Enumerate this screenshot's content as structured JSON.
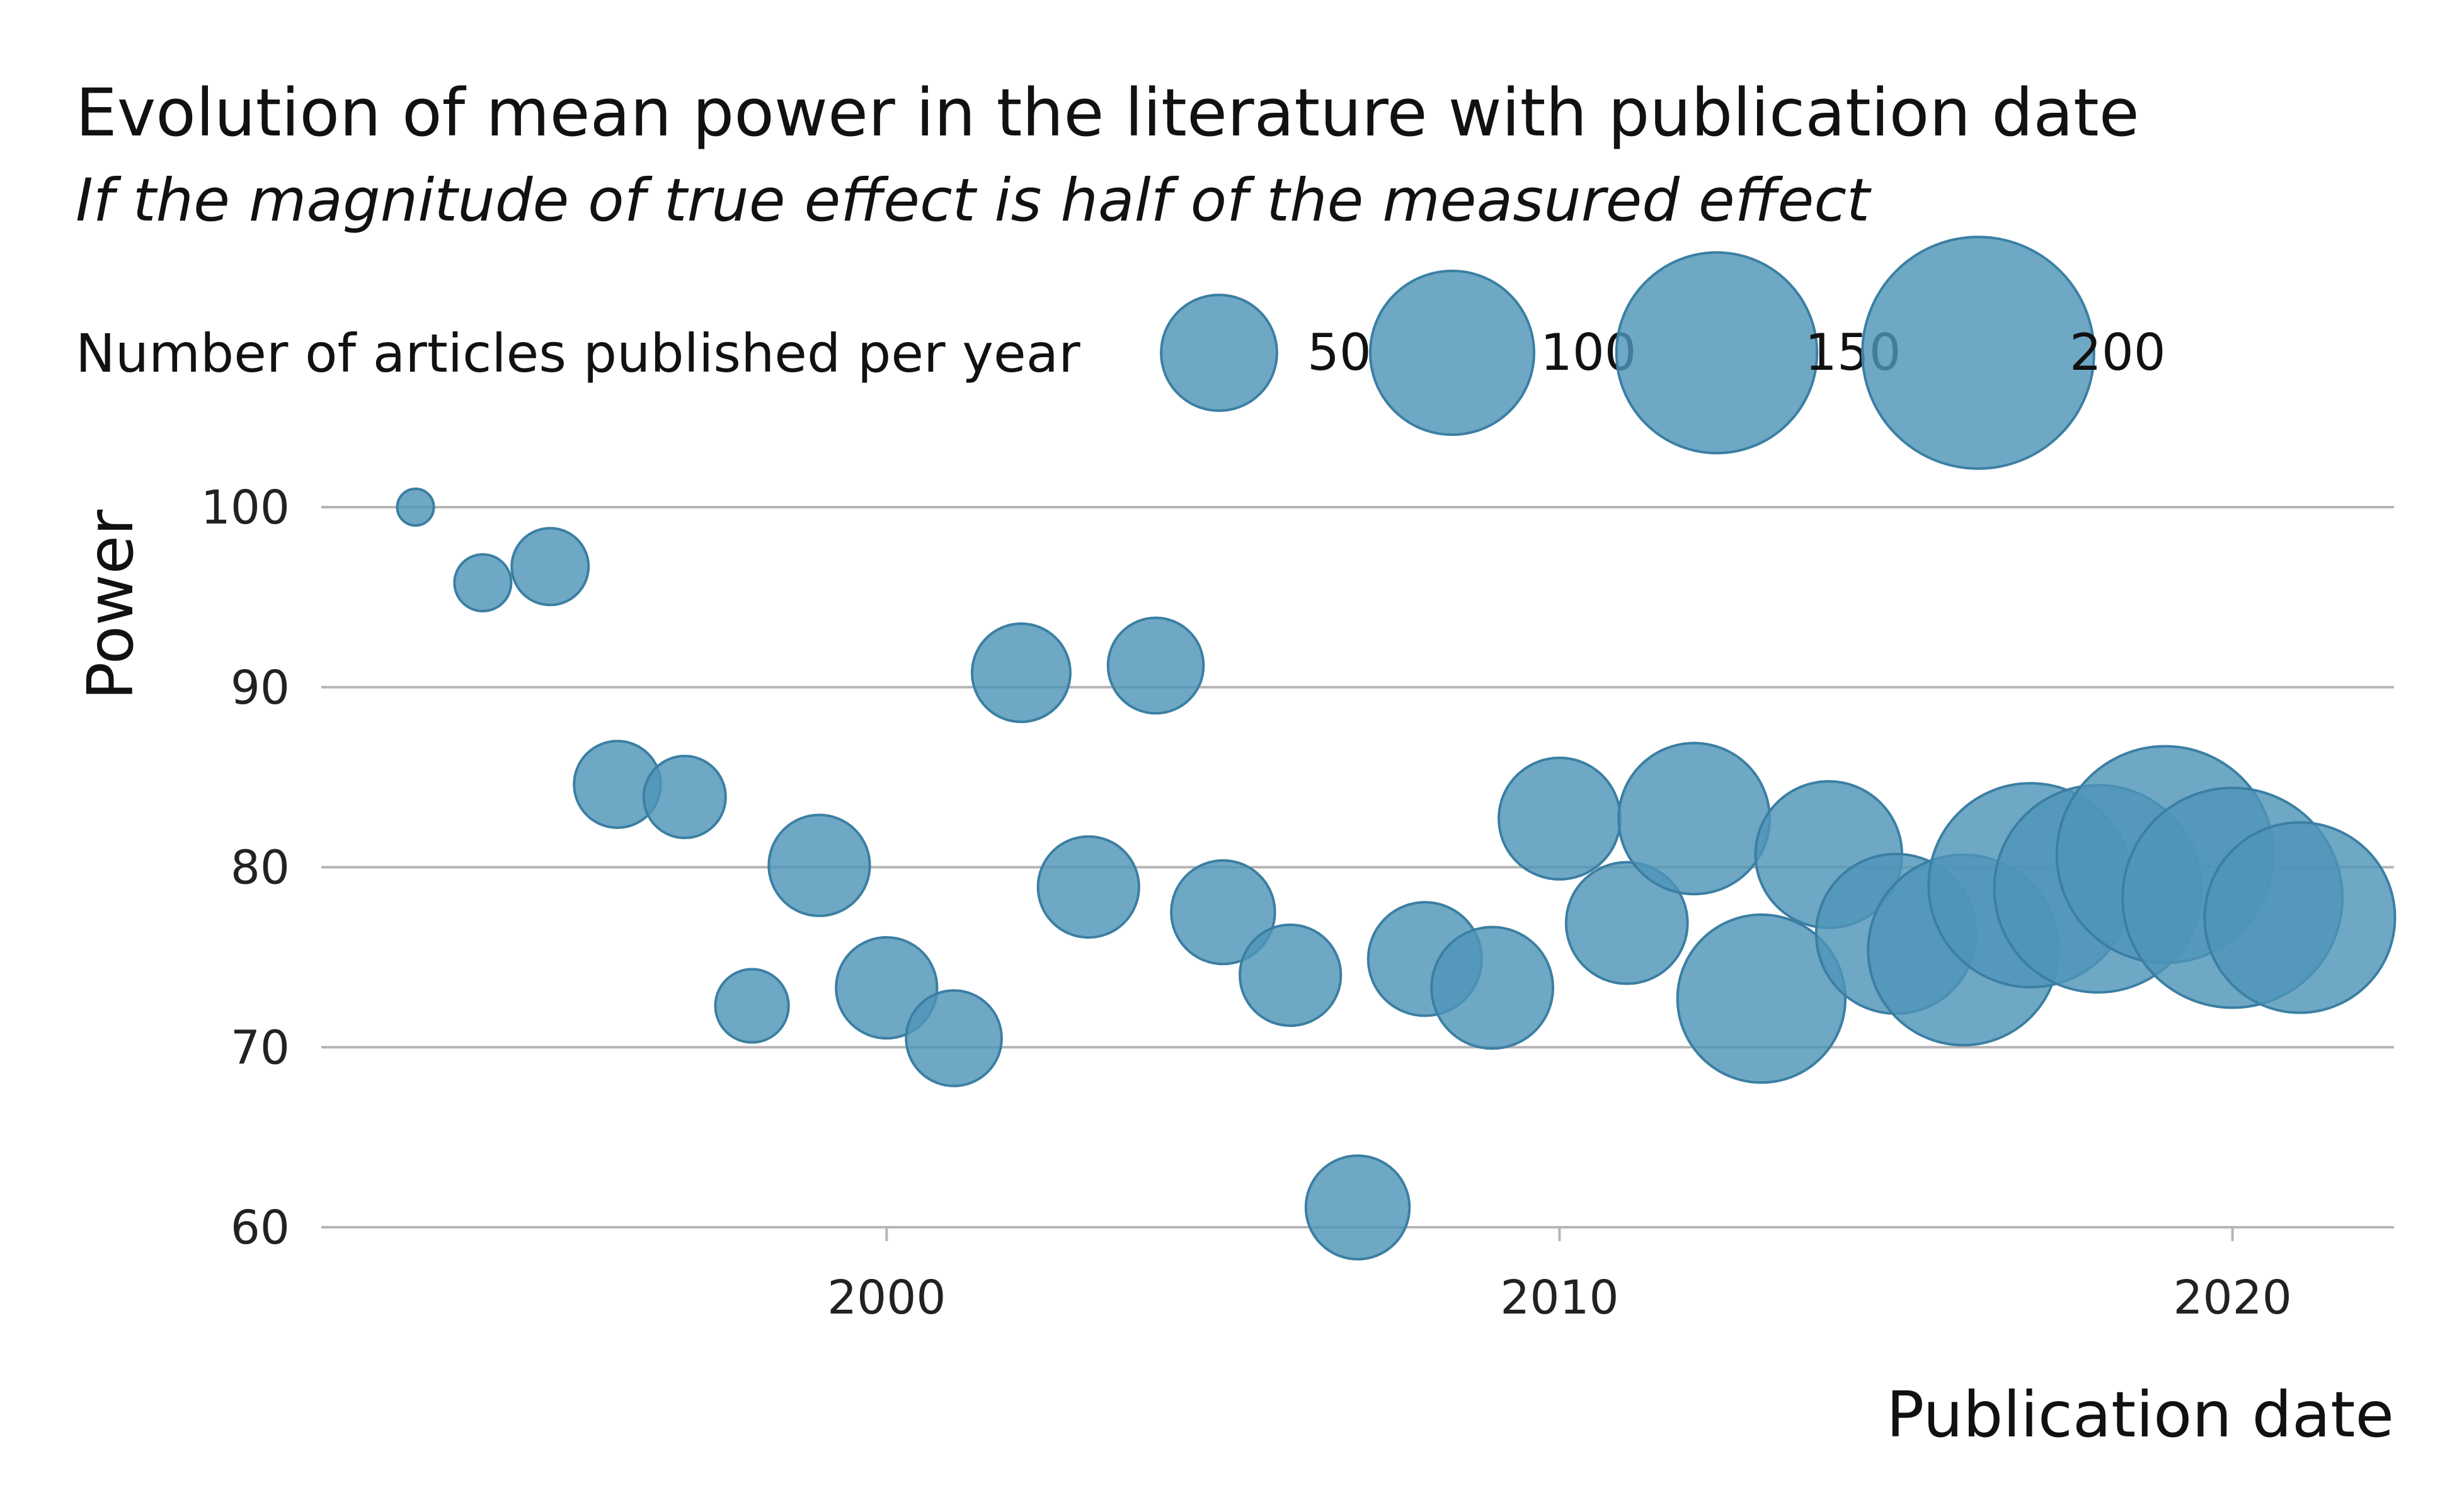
{
  "chart_data": {
    "type": "scatter",
    "title": "Evolution of mean power in the literature with publication date",
    "subtitle": "If the magnitude of true effect is half of the measured effect",
    "xlabel": "Publication date",
    "ylabel": "Power",
    "xlim": [
      1991.6,
      2022.4
    ],
    "ylim": [
      60,
      100
    ],
    "x_ticks": [
      2000,
      2010,
      2020
    ],
    "y_ticks": [
      60,
      70,
      80,
      90,
      100
    ],
    "grid": "horizontal",
    "legend": {
      "title": "Number of articles published per year",
      "placement": "top",
      "sizes": [
        50,
        100,
        150,
        200
      ]
    },
    "colors": {
      "point_fill": "#4e95b8",
      "point_stroke": "#3b7fa3"
    },
    "points": [
      {
        "x": 1993,
        "y": 100.0,
        "n": 5
      },
      {
        "x": 1994,
        "y": 95.8,
        "n": 12
      },
      {
        "x": 1995,
        "y": 96.7,
        "n": 22
      },
      {
        "x": 1996,
        "y": 84.6,
        "n": 28
      },
      {
        "x": 1997,
        "y": 83.9,
        "n": 25
      },
      {
        "x": 1998,
        "y": 72.3,
        "n": 20
      },
      {
        "x": 1999,
        "y": 80.1,
        "n": 38
      },
      {
        "x": 2000,
        "y": 73.3,
        "n": 38
      },
      {
        "x": 2001,
        "y": 70.5,
        "n": 34
      },
      {
        "x": 2002,
        "y": 90.8,
        "n": 36
      },
      {
        "x": 2003,
        "y": 78.9,
        "n": 38
      },
      {
        "x": 2004,
        "y": 91.2,
        "n": 34
      },
      {
        "x": 2005,
        "y": 77.5,
        "n": 40
      },
      {
        "x": 2006,
        "y": 74.0,
        "n": 38
      },
      {
        "x": 2007,
        "y": 61.1,
        "n": 40
      },
      {
        "x": 2008,
        "y": 74.9,
        "n": 48
      },
      {
        "x": 2009,
        "y": 73.3,
        "n": 55
      },
      {
        "x": 2010,
        "y": 82.7,
        "n": 55
      },
      {
        "x": 2011,
        "y": 76.9,
        "n": 55
      },
      {
        "x": 2012,
        "y": 82.7,
        "n": 85
      },
      {
        "x": 2013,
        "y": 72.7,
        "n": 105
      },
      {
        "x": 2014,
        "y": 80.7,
        "n": 80
      },
      {
        "x": 2015,
        "y": 76.3,
        "n": 95
      },
      {
        "x": 2016,
        "y": 75.4,
        "n": 135
      },
      {
        "x": 2017,
        "y": 79.0,
        "n": 155
      },
      {
        "x": 2018,
        "y": 78.8,
        "n": 160
      },
      {
        "x": 2019,
        "y": 80.7,
        "n": 175
      },
      {
        "x": 2020,
        "y": 78.3,
        "n": 180
      },
      {
        "x": 2021,
        "y": 77.2,
        "n": 135
      }
    ]
  }
}
